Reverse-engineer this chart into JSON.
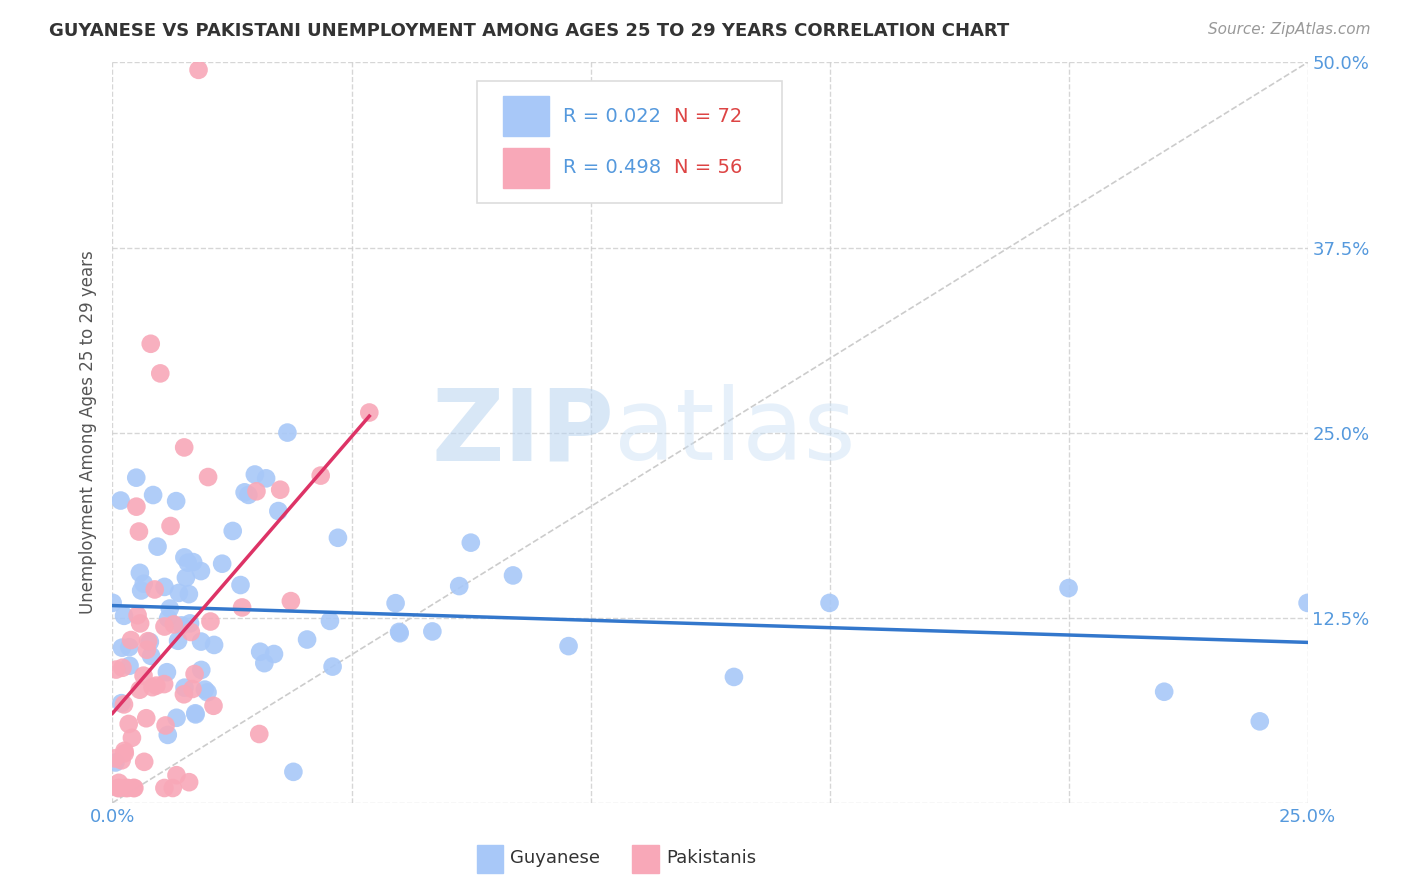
{
  "title": "GUYANESE VS PAKISTANI UNEMPLOYMENT AMONG AGES 25 TO 29 YEARS CORRELATION CHART",
  "source": "Source: ZipAtlas.com",
  "ylabel": "Unemployment Among Ages 25 to 29 years",
  "xlim": [
    0.0,
    0.25
  ],
  "ylim": [
    0.0,
    0.5
  ],
  "ytick_positions": [
    0.0,
    0.125,
    0.25,
    0.375,
    0.5
  ],
  "ytick_labels": [
    "",
    "12.5%",
    "25.0%",
    "37.5%",
    "50.0%"
  ],
  "xtick_positions": [
    0.0,
    0.05,
    0.1,
    0.15,
    0.2,
    0.25
  ],
  "xtick_labels": [
    "0.0%",
    "",
    "",
    "",
    "",
    "25.0%"
  ],
  "guyanese_color": "#a8c8f8",
  "pakistani_color": "#f8a8b8",
  "guyanese_line_color": "#3377cc",
  "pakistani_line_color": "#dd3366",
  "diagonal_color": "#cccccc",
  "legend_guyanese_r": "0.022",
  "legend_guyanese_n": "72",
  "legend_pakistani_r": "0.498",
  "legend_pakistani_n": "56",
  "watermark_zip": "ZIP",
  "watermark_atlas": "atlas",
  "background_color": "#ffffff",
  "grid_color": "#cccccc",
  "axis_label_color": "#5599dd",
  "title_color": "#333333",
  "ylabel_color": "#555555",
  "legend_r_color": "#5599dd",
  "legend_n_color": "#dd4444",
  "source_color": "#999999"
}
